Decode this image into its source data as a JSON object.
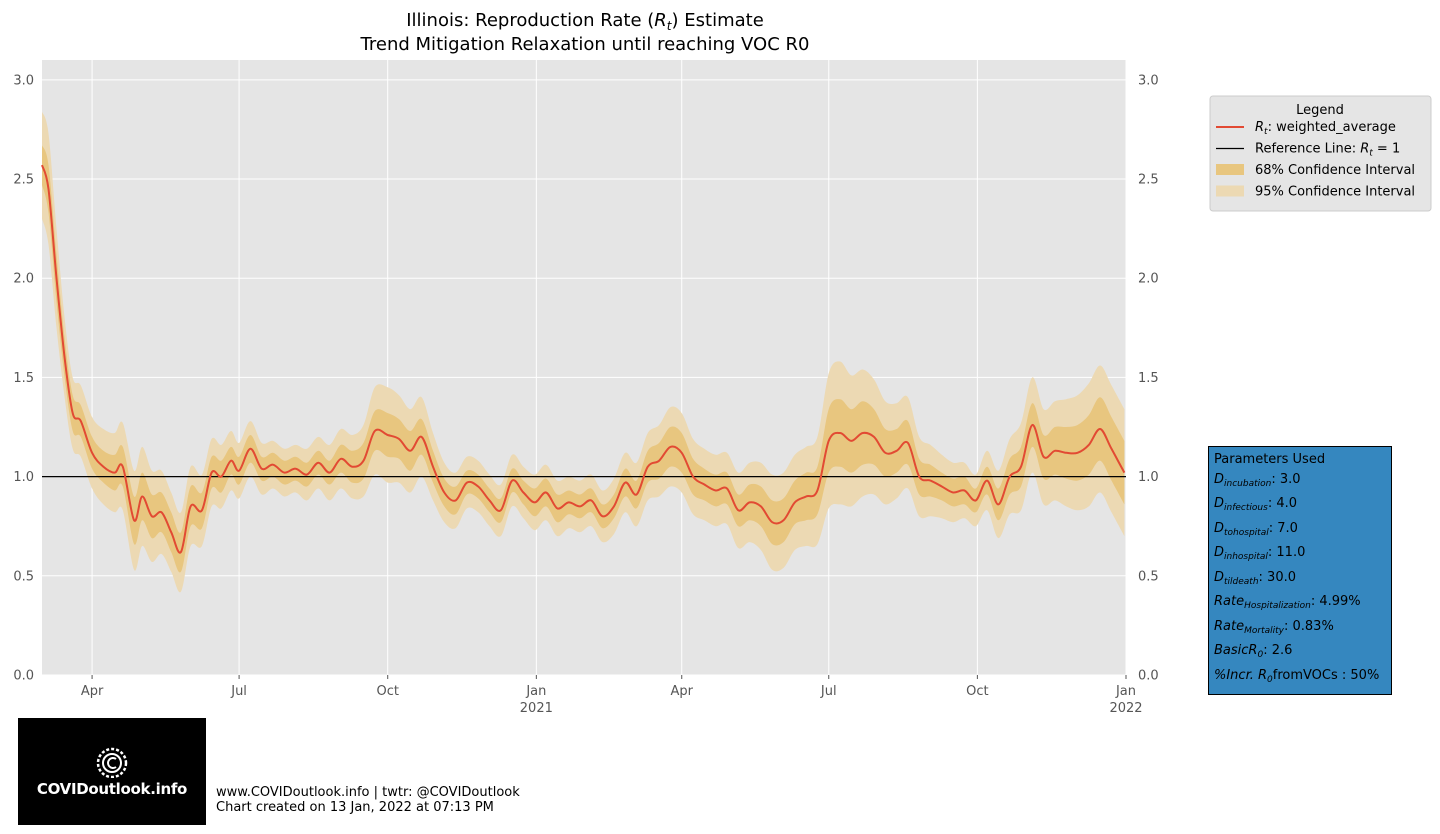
{
  "chart_data": {
    "type": "line",
    "title": "Illinois: Reproduction Rate (R_t) Estimate",
    "subtitle": "Trend Mitigation Relaxation until reaching VOC R0",
    "x_range": [
      "2020-03-01",
      "2022-01-01"
    ],
    "x_ticks": [
      {
        "date": "2020-04-01",
        "label": "Apr",
        "year": ""
      },
      {
        "date": "2020-07-01",
        "label": "Jul",
        "year": ""
      },
      {
        "date": "2020-10-01",
        "label": "Oct",
        "year": ""
      },
      {
        "date": "2021-01-01",
        "label": "Jan",
        "year": "2021"
      },
      {
        "date": "2021-04-01",
        "label": "Apr",
        "year": ""
      },
      {
        "date": "2021-07-01",
        "label": "Jul",
        "year": ""
      },
      {
        "date": "2021-10-01",
        "label": "Oct",
        "year": ""
      },
      {
        "date": "2022-01-01",
        "label": "Jan",
        "year": "2022"
      }
    ],
    "y_range": [
      0.0,
      3.1
    ],
    "y_ticks": [
      "0.0",
      "0.5",
      "1.0",
      "1.5",
      "2.0",
      "2.5",
      "3.0"
    ],
    "grid": true,
    "reference_line": 1.0,
    "series": [
      {
        "name": "weighted_average",
        "color": "#e24a33",
        "dates": [
          "2020-03-01",
          "2020-03-05",
          "2020-03-10",
          "2020-03-15",
          "2020-03-20",
          "2020-03-25",
          "2020-04-01",
          "2020-04-08",
          "2020-04-15",
          "2020-04-20",
          "2020-04-27",
          "2020-05-02",
          "2020-05-08",
          "2020-05-14",
          "2020-05-20",
          "2020-05-26",
          "2020-06-01",
          "2020-06-08",
          "2020-06-14",
          "2020-06-20",
          "2020-06-26",
          "2020-07-01",
          "2020-07-08",
          "2020-07-15",
          "2020-07-22",
          "2020-07-29",
          "2020-08-05",
          "2020-08-12",
          "2020-08-19",
          "2020-08-26",
          "2020-09-02",
          "2020-09-09",
          "2020-09-16",
          "2020-09-23",
          "2020-10-01",
          "2020-10-08",
          "2020-10-15",
          "2020-10-22",
          "2020-10-29",
          "2020-11-05",
          "2020-11-12",
          "2020-11-19",
          "2020-11-26",
          "2020-12-03",
          "2020-12-10",
          "2020-12-17",
          "2020-12-24",
          "2020-12-31",
          "2021-01-07",
          "2021-01-14",
          "2021-01-21",
          "2021-01-28",
          "2021-02-04",
          "2021-02-11",
          "2021-02-18",
          "2021-02-25",
          "2021-03-04",
          "2021-03-11",
          "2021-03-18",
          "2021-03-25",
          "2021-04-01",
          "2021-04-08",
          "2021-04-15",
          "2021-04-22",
          "2021-04-29",
          "2021-05-06",
          "2021-05-13",
          "2021-05-20",
          "2021-05-27",
          "2021-06-03",
          "2021-06-10",
          "2021-06-17",
          "2021-06-24",
          "2021-07-01",
          "2021-07-08",
          "2021-07-15",
          "2021-07-22",
          "2021-07-29",
          "2021-08-05",
          "2021-08-12",
          "2021-08-19",
          "2021-08-26",
          "2021-09-02",
          "2021-09-09",
          "2021-09-16",
          "2021-09-23",
          "2021-09-30",
          "2021-10-07",
          "2021-10-14",
          "2021-10-21",
          "2021-10-28",
          "2021-11-04",
          "2021-11-11",
          "2021-11-18",
          "2021-11-25",
          "2021-12-02",
          "2021-12-09",
          "2021-12-16",
          "2021-12-23",
          "2021-12-31"
        ],
        "values": [
          2.57,
          2.45,
          2.0,
          1.6,
          1.32,
          1.28,
          1.12,
          1.05,
          1.02,
          1.05,
          0.78,
          0.9,
          0.8,
          0.82,
          0.72,
          0.62,
          0.85,
          0.83,
          1.02,
          1.0,
          1.08,
          1.03,
          1.14,
          1.04,
          1.06,
          1.02,
          1.04,
          1.01,
          1.07,
          1.02,
          1.09,
          1.05,
          1.08,
          1.23,
          1.21,
          1.19,
          1.13,
          1.2,
          1.05,
          0.92,
          0.88,
          0.97,
          0.95,
          0.88,
          0.83,
          0.98,
          0.92,
          0.87,
          0.92,
          0.84,
          0.87,
          0.85,
          0.88,
          0.8,
          0.85,
          0.97,
          0.91,
          1.05,
          1.08,
          1.15,
          1.12,
          1.0,
          0.96,
          0.93,
          0.94,
          0.83,
          0.87,
          0.85,
          0.77,
          0.78,
          0.87,
          0.9,
          0.93,
          1.18,
          1.22,
          1.18,
          1.22,
          1.2,
          1.12,
          1.13,
          1.17,
          1.0,
          0.98,
          0.95,
          0.92,
          0.93,
          0.88,
          0.98,
          0.86,
          1.0,
          1.05,
          1.26,
          1.1,
          1.13,
          1.12,
          1.12,
          1.16,
          1.24,
          1.14,
          1.02
        ],
        "ci68_half_width": [
          0.1,
          0.12,
          0.12,
          0.1,
          0.09,
          0.08,
          0.08,
          0.08,
          0.09,
          0.1,
          0.12,
          0.12,
          0.11,
          0.1,
          0.1,
          0.1,
          0.1,
          0.09,
          0.08,
          0.08,
          0.07,
          0.07,
          0.07,
          0.06,
          0.06,
          0.06,
          0.06,
          0.06,
          0.06,
          0.06,
          0.07,
          0.08,
          0.09,
          0.1,
          0.11,
          0.1,
          0.1,
          0.09,
          0.08,
          0.07,
          0.07,
          0.06,
          0.06,
          0.06,
          0.06,
          0.06,
          0.06,
          0.07,
          0.07,
          0.07,
          0.06,
          0.06,
          0.06,
          0.06,
          0.06,
          0.07,
          0.07,
          0.08,
          0.09,
          0.1,
          0.1,
          0.09,
          0.08,
          0.08,
          0.08,
          0.08,
          0.09,
          0.1,
          0.11,
          0.11,
          0.11,
          0.12,
          0.12,
          0.16,
          0.17,
          0.16,
          0.16,
          0.14,
          0.12,
          0.11,
          0.11,
          0.09,
          0.08,
          0.07,
          0.07,
          0.07,
          0.06,
          0.07,
          0.08,
          0.09,
          0.1,
          0.11,
          0.11,
          0.12,
          0.13,
          0.14,
          0.15,
          0.16,
          0.16,
          0.16
        ],
        "ci95_half_width": [
          0.27,
          0.28,
          0.25,
          0.2,
          0.18,
          0.18,
          0.18,
          0.19,
          0.2,
          0.22,
          0.25,
          0.25,
          0.23,
          0.21,
          0.2,
          0.2,
          0.2,
          0.18,
          0.17,
          0.16,
          0.15,
          0.14,
          0.14,
          0.13,
          0.12,
          0.12,
          0.12,
          0.13,
          0.13,
          0.14,
          0.15,
          0.16,
          0.18,
          0.22,
          0.24,
          0.22,
          0.21,
          0.2,
          0.17,
          0.15,
          0.14,
          0.13,
          0.13,
          0.13,
          0.13,
          0.13,
          0.13,
          0.14,
          0.14,
          0.14,
          0.13,
          0.13,
          0.13,
          0.13,
          0.14,
          0.15,
          0.16,
          0.17,
          0.18,
          0.2,
          0.2,
          0.19,
          0.18,
          0.18,
          0.18,
          0.19,
          0.2,
          0.22,
          0.24,
          0.24,
          0.24,
          0.25,
          0.27,
          0.34,
          0.36,
          0.33,
          0.32,
          0.29,
          0.26,
          0.24,
          0.23,
          0.2,
          0.18,
          0.16,
          0.15,
          0.14,
          0.13,
          0.15,
          0.17,
          0.19,
          0.22,
          0.24,
          0.24,
          0.25,
          0.27,
          0.29,
          0.31,
          0.32,
          0.32,
          0.32
        ]
      }
    ],
    "legend": {
      "title": "Legend",
      "position": "upper-right, outside plot",
      "entries": [
        {
          "label_prefix": "R",
          "label_sub": "t",
          "label": ": weighted_average",
          "kind": "line",
          "color": "#e24a33"
        },
        {
          "label_prefix": "Reference Line: R",
          "label_sub": "t",
          "label": " = 1",
          "kind": "line",
          "color": "#000000"
        },
        {
          "label_prefix": "",
          "label_sub": "",
          "label": "68% Confidence Interval",
          "kind": "patch",
          "color": "#e8c67f"
        },
        {
          "label_prefix": "",
          "label_sub": "",
          "label": "95% Confidence Interval",
          "kind": "patch",
          "color": "#ecd9b3"
        }
      ]
    },
    "colors": {
      "plot_background": "#e5e5e5",
      "grid": "#ffffff",
      "line": "#e24a33",
      "ci68": "#e8c67f",
      "ci95": "#ecd9b3",
      "reference": "#000000",
      "params_box": "#3587bf"
    }
  },
  "parameters": {
    "title": "Parameters Used",
    "items": [
      {
        "base": "D",
        "sub": "incubation",
        "value": ": 3.0"
      },
      {
        "base": "D",
        "sub": "infectious",
        "value": ": 4.0"
      },
      {
        "base": "D",
        "sub": "tohospital",
        "value": ": 7.0"
      },
      {
        "base": "D",
        "sub": "inhospital",
        "value": ": 11.0"
      },
      {
        "base": "D",
        "sub": "tildeath",
        "value": ": 30.0"
      },
      {
        "base": "Rate",
        "sub": "Hospitalization",
        "value": ": 4.99%"
      },
      {
        "base": "Rate",
        "sub": "Mortality",
        "value": ": 0.83%"
      },
      {
        "base": "BasicR",
        "sub": "0",
        "value": ": 2.6"
      },
      {
        "base": "%Incr. R",
        "sub": "0",
        "value": "fromVOCs : 50%"
      }
    ]
  },
  "logo": {
    "text": "COVIDoutlook.info"
  },
  "footer": {
    "line1": "www.COVIDoutlook.info | twtr: @COVIDoutlook",
    "line2": "Chart created on 13 Jan, 2022 at 07:13 PM"
  }
}
